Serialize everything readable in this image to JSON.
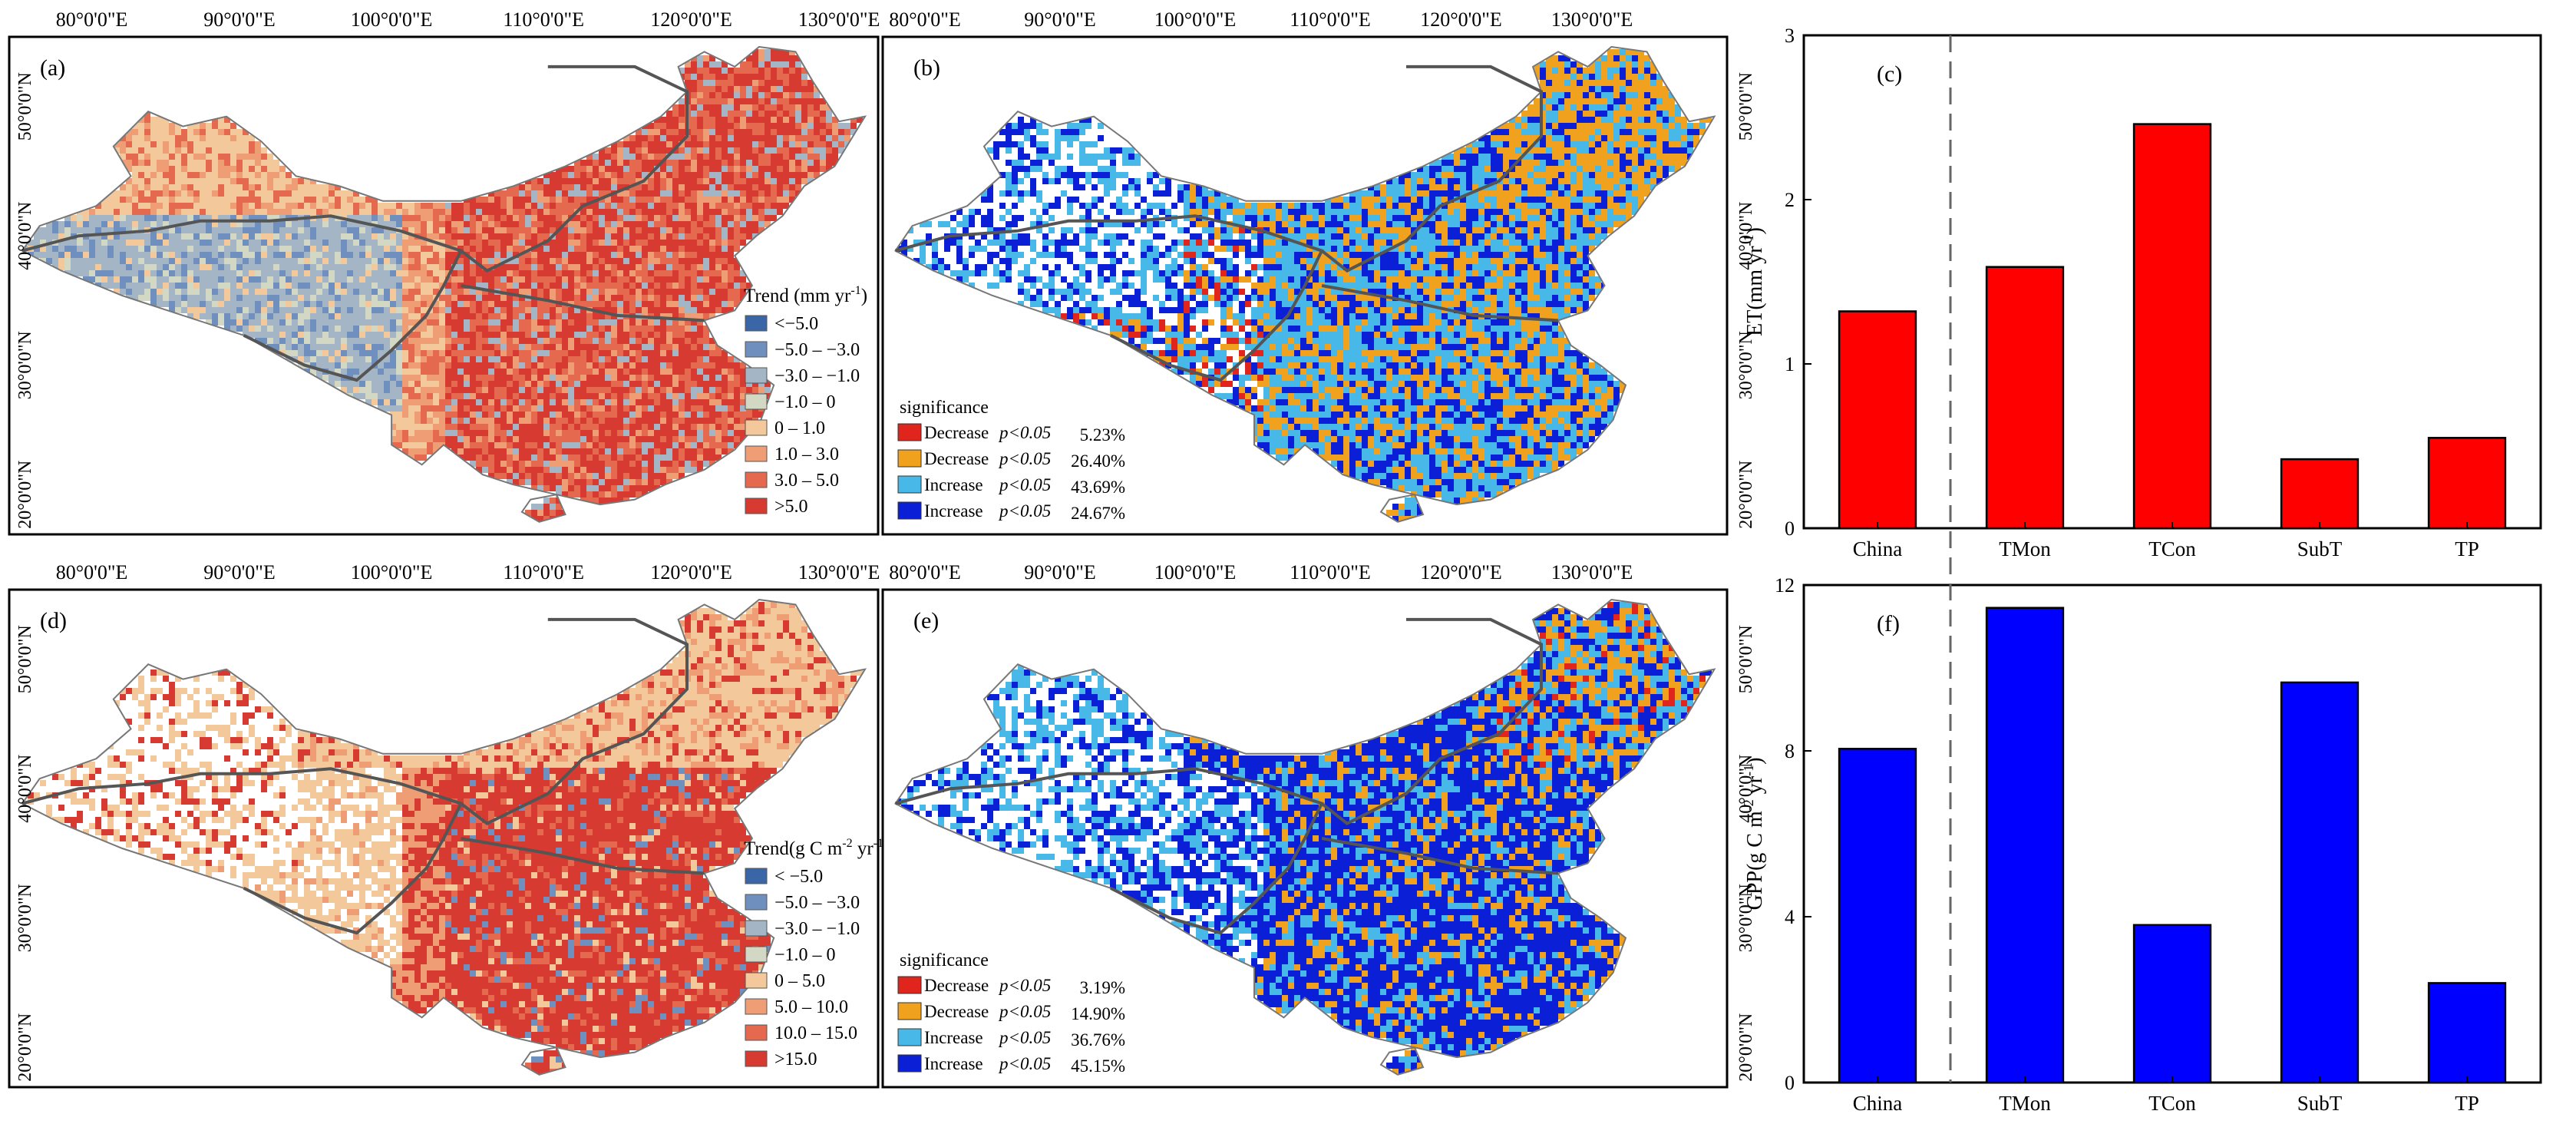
{
  "maps": [
    {
      "id": "a",
      "label": "(a)",
      "lon_ticks": [
        "80°0'0\"E",
        "90°0'0\"E",
        "100°0'0\"E",
        "110°0'0\"E",
        "120°0'0\"E",
        "130°0'0\"E"
      ],
      "lat_ticks": [
        "50°0'0\"N",
        "40°0'0\"N",
        "30°0'0\"N",
        "20°0'0\"N"
      ],
      "lat_side": "left",
      "legend": {
        "type": "classes",
        "title": "Trend (mm yr",
        "title_sup": "-1",
        "title_end": ")",
        "items": [
          {
            "label": "<−5.0",
            "color": "#3a66a8"
          },
          {
            "label": "−5.0 – −3.0",
            "color": "#6f8fbf"
          },
          {
            "label": "−3.0 – −1.0",
            "color": "#a4b6c6"
          },
          {
            "label": "−1.0 – 0",
            "color": "#d3d8c4"
          },
          {
            "label": "0 – 1.0",
            "color": "#f3c89a"
          },
          {
            "label": "1.0 – 3.0",
            "color": "#ee9d75"
          },
          {
            "label": "3.0 – 5.0",
            "color": "#e4694f"
          },
          {
            "label": ">5.0",
            "color": "#d63a31"
          }
        ]
      }
    },
    {
      "id": "b",
      "label": "(b)",
      "lon_ticks": [
        "80°0'0\"E",
        "90°0'0\"E",
        "100°0'0\"E",
        "110°0'0\"E",
        "120°0'0\"E",
        "130°0'0\"E"
      ],
      "lat_ticks": [
        "50°0'0\"N",
        "40°0'0\"N",
        "30°0'0\"N",
        "20°0'0\"N"
      ],
      "lat_side": "right",
      "legend": {
        "type": "significance",
        "title": "significance",
        "items": [
          {
            "label": "Decrease",
            "p": "p<0.05",
            "pct": "5.23%",
            "color": "#e0251d"
          },
          {
            "label": "Decrease",
            "p": "p<0.05",
            "pct": "26.40%",
            "color": "#f0a21e"
          },
          {
            "label": "Increase",
            "p": "p<0.05",
            "pct": "43.69%",
            "color": "#48b8e8"
          },
          {
            "label": "Increase",
            "p": "p<0.05",
            "pct": "24.67%",
            "color": "#0a1fd6"
          }
        ]
      }
    },
    {
      "id": "d",
      "label": "(d)",
      "lon_ticks": [
        "80°0'0\"E",
        "90°0'0\"E",
        "100°0'0\"E",
        "110°0'0\"E",
        "120°0'0\"E",
        "130°0'0\"E"
      ],
      "lat_ticks": [
        "50°0'0\"N",
        "40°0'0\"N",
        "30°0'0\"N",
        "20°0'0\"N"
      ],
      "lat_side": "left",
      "legend": {
        "type": "classes",
        "title": "Trend(g C m",
        "title_sup": "-2",
        "title_mid": " yr",
        "title_sup2": "-1",
        "title_end": ")",
        "items": [
          {
            "label": "< −5.0",
            "color": "#3a66a8"
          },
          {
            "label": "−5.0 – −3.0",
            "color": "#6f8fbf"
          },
          {
            "label": "−3.0 – −1.0",
            "color": "#a4b6c6"
          },
          {
            "label": "−1.0 – 0",
            "color": "#d3d8c4"
          },
          {
            "label": "0 – 5.0",
            "color": "#f3c89a"
          },
          {
            "label": "5.0 – 10.0",
            "color": "#ee9d75"
          },
          {
            "label": "10.0 – 15.0",
            "color": "#e4694f"
          },
          {
            "label": ">15.0",
            "color": "#d63a31"
          }
        ]
      }
    },
    {
      "id": "e",
      "label": "(e)",
      "lon_ticks": [
        "80°0'0\"E",
        "90°0'0\"E",
        "100°0'0\"E",
        "110°0'0\"E",
        "120°0'0\"E",
        "130°0'0\"E"
      ],
      "lat_ticks": [
        "50°0'0\"N",
        "40°0'0\"N",
        "30°0'0\"N",
        "20°0'0\"N"
      ],
      "lat_side": "right",
      "legend": {
        "type": "significance",
        "title": "significance",
        "items": [
          {
            "label": "Decrease",
            "p": "p<0.05",
            "pct": "3.19%",
            "color": "#e0251d"
          },
          {
            "label": "Decrease",
            "p": "p<0.05",
            "pct": "14.90%",
            "color": "#f0a21e"
          },
          {
            "label": "Increase",
            "p": "p<0.05",
            "pct": "36.76%",
            "color": "#48b8e8"
          },
          {
            "label": "Increase",
            "p": "p<0.05",
            "pct": "45.15%",
            "color": "#0a1fd6"
          }
        ]
      }
    }
  ],
  "chart_data": [
    {
      "id": "c",
      "label": "(c)",
      "type": "bar",
      "categories": [
        "China",
        "TMon",
        "TCon",
        "SubT",
        "TP"
      ],
      "values": [
        1.32,
        1.59,
        2.46,
        0.42,
        0.55
      ],
      "ylabel": "ET(mm yr",
      "ylabel_sup": "-1",
      "ylabel_end": ")",
      "ylim": [
        0,
        3
      ],
      "yticks": [
        0,
        1,
        2,
        3
      ],
      "color": "#ff0000"
    },
    {
      "id": "f",
      "label": "(f)",
      "type": "bar",
      "categories": [
        "China",
        "TMon",
        "TCon",
        "SubT",
        "TP"
      ],
      "values": [
        8.05,
        11.45,
        3.8,
        9.65,
        2.4
      ],
      "ylabel": "GPP(g C m",
      "ylabel_sup": "-2",
      "ylabel_mid": " yr",
      "ylabel_sup2": "-1",
      "ylabel_end": ")",
      "ylim": [
        0,
        12
      ],
      "yticks": [
        0,
        4,
        8,
        12
      ],
      "color": "#0000ff"
    }
  ]
}
